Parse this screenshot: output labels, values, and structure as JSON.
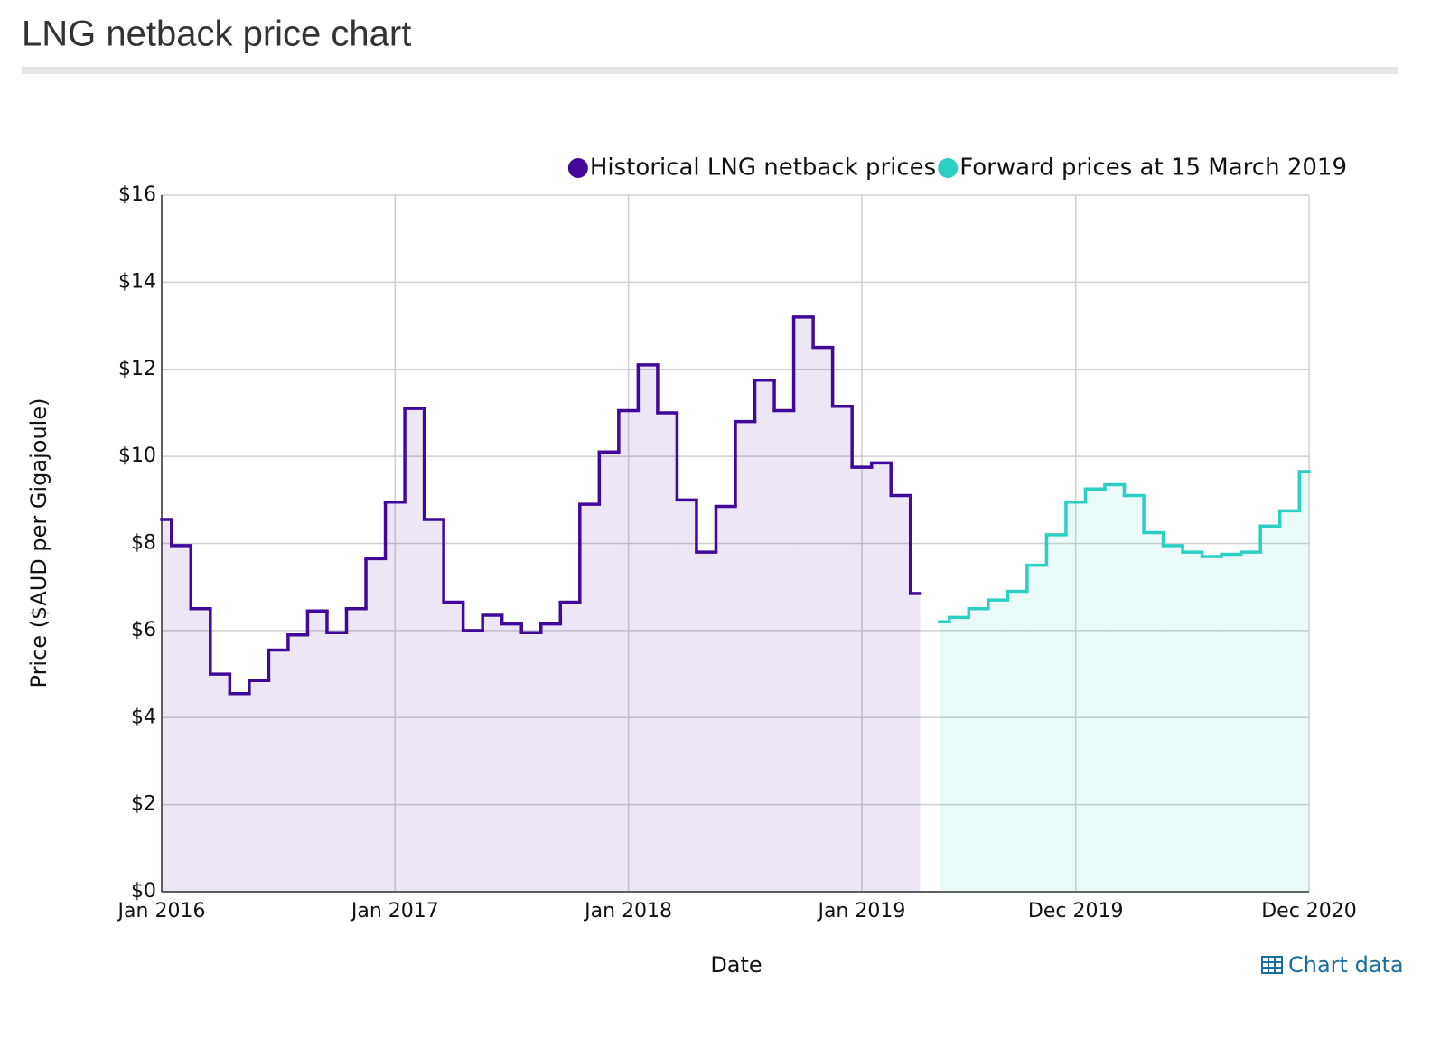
{
  "chart_data": {
    "type": "step-area",
    "title": "LNG netback price chart",
    "x_label": "Date",
    "y_label": "Price ($AUD per Gigajoule)",
    "legend": "top-right",
    "grid": true,
    "ylim": [
      0,
      16
    ],
    "yticks": [
      {
        "value": 0,
        "label": "$0"
      },
      {
        "value": 2,
        "label": "$2"
      },
      {
        "value": 4,
        "label": "$4"
      },
      {
        "value": 6,
        "label": "$6"
      },
      {
        "value": 8,
        "label": "$8"
      },
      {
        "value": 10,
        "label": "$10"
      },
      {
        "value": 12,
        "label": "$12"
      },
      {
        "value": 14,
        "label": "$14"
      },
      {
        "value": 16,
        "label": "$16"
      }
    ],
    "xlim": [
      "2016-01",
      "2020-12"
    ],
    "xticks": [
      {
        "value": "2016-01",
        "label": "Jan 2016"
      },
      {
        "value": "2017-01",
        "label": "Jan 2017"
      },
      {
        "value": "2018-01",
        "label": "Jan 2018"
      },
      {
        "value": "2019-01",
        "label": "Jan 2019"
      },
      {
        "value": "2019-12",
        "label": "Dec 2019"
      },
      {
        "value": "2020-12",
        "label": "Dec 2020"
      }
    ],
    "series": [
      {
        "name": "Historical LNG netback prices",
        "color": "#40099a",
        "x": [
          "2016-01",
          "2016-02",
          "2016-03",
          "2016-04",
          "2016-05",
          "2016-06",
          "2016-07",
          "2016-08",
          "2016-09",
          "2016-10",
          "2016-11",
          "2016-12",
          "2017-01",
          "2017-02",
          "2017-03",
          "2017-04",
          "2017-05",
          "2017-06",
          "2017-07",
          "2017-08",
          "2017-09",
          "2017-10",
          "2017-11",
          "2017-12",
          "2018-01",
          "2018-02",
          "2018-03",
          "2018-04",
          "2018-05",
          "2018-06",
          "2018-07",
          "2018-08",
          "2018-09",
          "2018-10",
          "2018-11",
          "2018-12",
          "2019-01",
          "2019-02",
          "2019-03",
          "2019-04"
        ],
        "values": [
          8.55,
          7.95,
          6.5,
          5.0,
          4.55,
          4.85,
          5.55,
          5.9,
          6.45,
          5.95,
          6.5,
          7.65,
          8.95,
          11.1,
          8.55,
          6.65,
          6.0,
          6.35,
          6.15,
          5.95,
          6.15,
          6.65,
          8.9,
          10.1,
          11.05,
          12.1,
          11.0,
          9.0,
          7.8,
          8.85,
          10.8,
          11.75,
          11.05,
          13.2,
          12.5,
          11.15,
          9.75,
          9.85,
          9.1,
          6.85
        ]
      },
      {
        "name": "Forward prices at 15 March 2019",
        "color": "#2ecfc3",
        "x": [
          "2019-05",
          "2019-06",
          "2019-07",
          "2019-08",
          "2019-09",
          "2019-10",
          "2019-11",
          "2019-12",
          "2020-01",
          "2020-02",
          "2020-03",
          "2020-04",
          "2020-05",
          "2020-06",
          "2020-07",
          "2020-08",
          "2020-09",
          "2020-10",
          "2020-11",
          "2020-12"
        ],
        "values": [
          6.2,
          6.3,
          6.5,
          6.7,
          6.9,
          7.5,
          8.2,
          8.95,
          9.25,
          9.35,
          9.1,
          8.25,
          7.95,
          7.8,
          7.7,
          7.75,
          7.8,
          8.4,
          8.75,
          9.65
        ]
      }
    ]
  },
  "chart_link": "Chart data"
}
